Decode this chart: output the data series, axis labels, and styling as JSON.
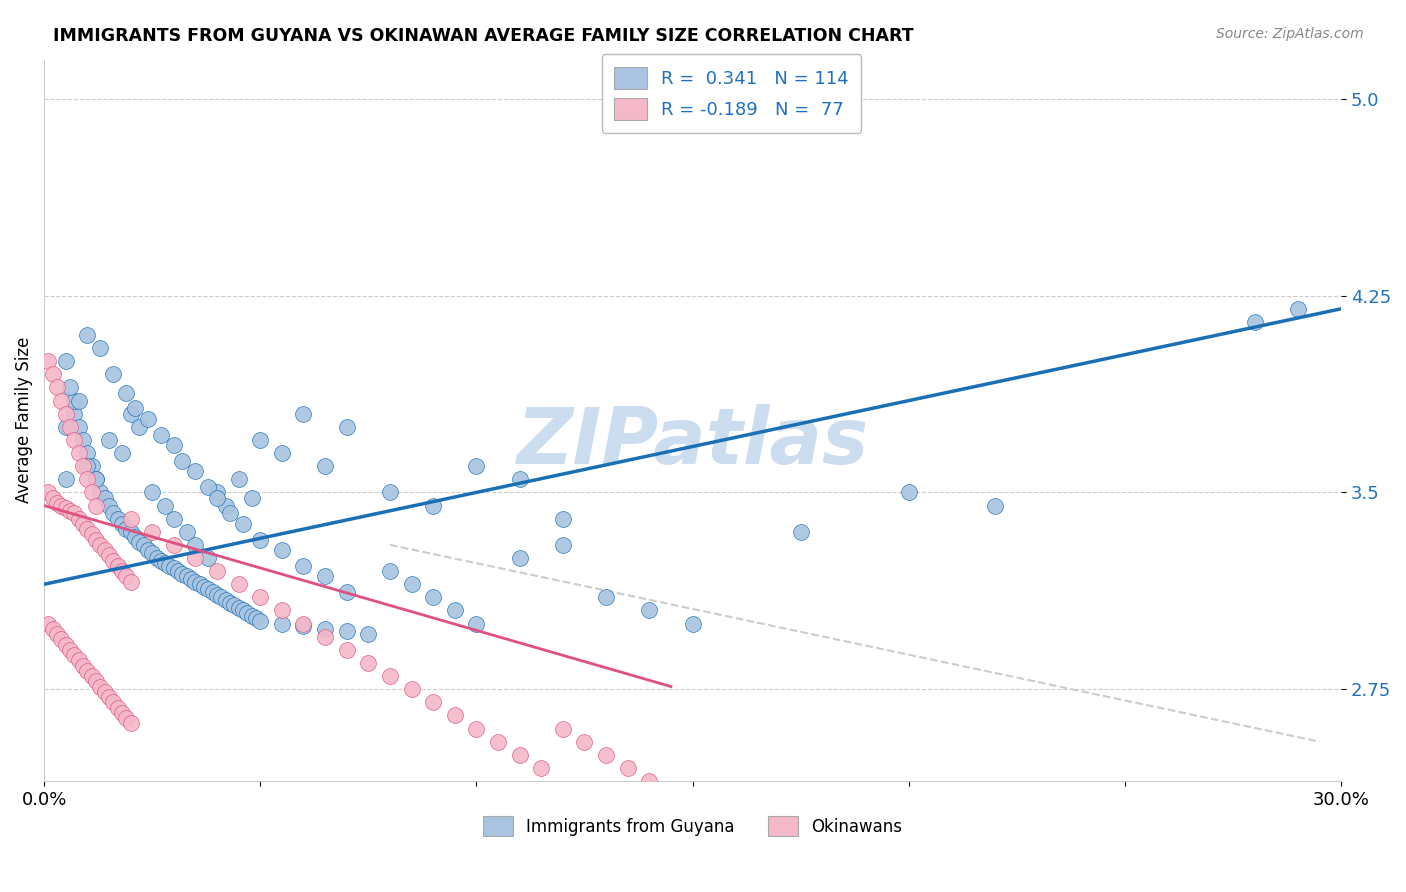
{
  "title": "IMMIGRANTS FROM GUYANA VS OKINAWAN AVERAGE FAMILY SIZE CORRELATION CHART",
  "source": "Source: ZipAtlas.com",
  "ylabel": "Average Family Size",
  "xlim": [
    0.0,
    0.3
  ],
  "ylim": [
    2.4,
    5.15
  ],
  "yticks": [
    2.75,
    3.5,
    4.25,
    5.0
  ],
  "xticks": [
    0.0,
    0.05,
    0.1,
    0.15,
    0.2,
    0.25,
    0.3
  ],
  "xtick_labels": [
    "0.0%",
    "",
    "",
    "",
    "",
    "",
    "30.0%"
  ],
  "color_blue": "#a8c4e0",
  "color_pink": "#f4b8c8",
  "line_blue": "#1a6fb5",
  "line_pink": "#e05080",
  "line_dashed": "#cccccc",
  "watermark": "ZIPatlas",
  "watermark_color": "#ccddef",
  "blue_scatter_x": [
    0.005,
    0.007,
    0.008,
    0.009,
    0.01,
    0.011,
    0.012,
    0.013,
    0.014,
    0.015,
    0.016,
    0.017,
    0.018,
    0.019,
    0.02,
    0.021,
    0.022,
    0.023,
    0.024,
    0.025,
    0.026,
    0.027,
    0.028,
    0.029,
    0.03,
    0.031,
    0.032,
    0.033,
    0.034,
    0.035,
    0.036,
    0.037,
    0.038,
    0.039,
    0.04,
    0.041,
    0.042,
    0.043,
    0.044,
    0.045,
    0.046,
    0.047,
    0.048,
    0.049,
    0.05,
    0.055,
    0.06,
    0.065,
    0.07,
    0.075,
    0.08,
    0.085,
    0.09,
    0.095,
    0.1,
    0.11,
    0.12,
    0.13,
    0.14,
    0.15,
    0.005,
    0.007,
    0.01,
    0.012,
    0.015,
    0.018,
    0.02,
    0.022,
    0.025,
    0.028,
    0.03,
    0.033,
    0.035,
    0.038,
    0.04,
    0.042,
    0.045,
    0.048,
    0.05,
    0.055,
    0.06,
    0.065,
    0.07,
    0.08,
    0.09,
    0.1,
    0.11,
    0.12,
    0.175,
    0.2,
    0.22,
    0.28,
    0.005,
    0.006,
    0.008,
    0.01,
    0.013,
    0.016,
    0.019,
    0.021,
    0.024,
    0.027,
    0.03,
    0.032,
    0.035,
    0.038,
    0.04,
    0.043,
    0.046,
    0.05,
    0.055,
    0.06,
    0.065,
    0.07,
    0.29
  ],
  "blue_scatter_y": [
    3.55,
    3.8,
    3.75,
    3.7,
    3.65,
    3.6,
    3.55,
    3.5,
    3.48,
    3.45,
    3.42,
    3.4,
    3.38,
    3.36,
    3.35,
    3.33,
    3.31,
    3.3,
    3.28,
    3.27,
    3.25,
    3.24,
    3.23,
    3.22,
    3.21,
    3.2,
    3.19,
    3.18,
    3.17,
    3.16,
    3.15,
    3.14,
    3.13,
    3.12,
    3.11,
    3.1,
    3.09,
    3.08,
    3.07,
    3.06,
    3.05,
    3.04,
    3.03,
    3.02,
    3.01,
    3.0,
    2.99,
    2.98,
    2.97,
    2.96,
    3.2,
    3.15,
    3.1,
    3.05,
    3.0,
    3.25,
    3.3,
    3.1,
    3.05,
    3.0,
    3.75,
    3.85,
    3.6,
    3.55,
    3.7,
    3.65,
    3.8,
    3.75,
    3.5,
    3.45,
    3.4,
    3.35,
    3.3,
    3.25,
    3.5,
    3.45,
    3.55,
    3.48,
    3.7,
    3.65,
    3.8,
    3.6,
    3.75,
    3.5,
    3.45,
    3.6,
    3.55,
    3.4,
    3.35,
    3.5,
    3.45,
    4.15,
    4.0,
    3.9,
    3.85,
    4.1,
    4.05,
    3.95,
    3.88,
    3.82,
    3.78,
    3.72,
    3.68,
    3.62,
    3.58,
    3.52,
    3.48,
    3.42,
    3.38,
    3.32,
    3.28,
    3.22,
    3.18,
    3.12,
    4.2
  ],
  "pink_scatter_x": [
    0.001,
    0.002,
    0.003,
    0.004,
    0.005,
    0.006,
    0.007,
    0.008,
    0.009,
    0.01,
    0.011,
    0.012,
    0.013,
    0.014,
    0.015,
    0.016,
    0.017,
    0.018,
    0.019,
    0.02,
    0.001,
    0.002,
    0.003,
    0.004,
    0.005,
    0.006,
    0.007,
    0.008,
    0.009,
    0.01,
    0.011,
    0.012,
    0.013,
    0.014,
    0.015,
    0.016,
    0.017,
    0.018,
    0.019,
    0.02,
    0.001,
    0.002,
    0.003,
    0.004,
    0.005,
    0.006,
    0.007,
    0.008,
    0.009,
    0.01,
    0.011,
    0.012,
    0.02,
    0.025,
    0.03,
    0.035,
    0.04,
    0.045,
    0.05,
    0.055,
    0.06,
    0.065,
    0.07,
    0.075,
    0.08,
    0.085,
    0.09,
    0.095,
    0.1,
    0.105,
    0.11,
    0.115,
    0.12,
    0.125,
    0.13,
    0.135,
    0.14
  ],
  "pink_scatter_y": [
    3.5,
    3.48,
    3.46,
    3.45,
    3.44,
    3.43,
    3.42,
    3.4,
    3.38,
    3.36,
    3.34,
    3.32,
    3.3,
    3.28,
    3.26,
    3.24,
    3.22,
    3.2,
    3.18,
    3.16,
    3.0,
    2.98,
    2.96,
    2.94,
    2.92,
    2.9,
    2.88,
    2.86,
    2.84,
    2.82,
    2.8,
    2.78,
    2.76,
    2.74,
    2.72,
    2.7,
    2.68,
    2.66,
    2.64,
    2.62,
    4.0,
    3.95,
    3.9,
    3.85,
    3.8,
    3.75,
    3.7,
    3.65,
    3.6,
    3.55,
    3.5,
    3.45,
    3.4,
    3.35,
    3.3,
    3.25,
    3.2,
    3.15,
    3.1,
    3.05,
    3.0,
    2.95,
    2.9,
    2.85,
    2.8,
    2.75,
    2.7,
    2.65,
    2.6,
    2.55,
    2.5,
    2.45,
    2.6,
    2.55,
    2.5,
    2.45,
    2.4
  ],
  "blue_line_x": [
    0.0,
    0.3
  ],
  "blue_line_y": [
    3.15,
    4.2
  ],
  "pink_line_x": [
    0.0,
    0.145
  ],
  "pink_line_y": [
    3.45,
    2.76
  ],
  "dashed_line_x": [
    0.08,
    0.295
  ],
  "dashed_line_y": [
    3.3,
    2.55
  ]
}
